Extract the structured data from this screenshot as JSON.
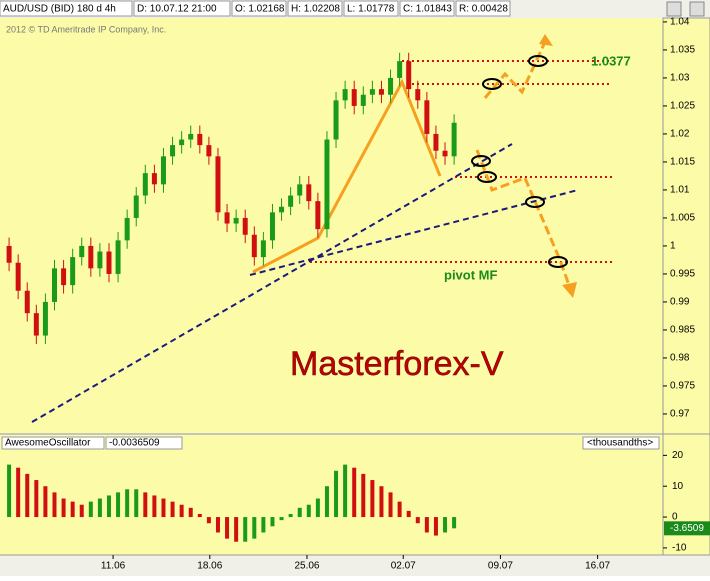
{
  "header": {
    "symbol": "AUD/USD (BID) 180 d 4h",
    "date": "D: 10.07.12 21:00",
    "open": "O: 1.02168",
    "high": "H: 1.02208",
    "low": "L: 1.01778",
    "close": "C: 1.01843",
    "range": "R: 0.00428"
  },
  "annotations": {
    "copyright": "2012 © TD Ameritrade IP Company, Inc.",
    "target": "1.0377",
    "pivot": "pivot MF",
    "brand": "Masterforex-V"
  },
  "chart_data": [
    {
      "type": "candlestick",
      "x": [
        0,
        1,
        2,
        3,
        4,
        5,
        6,
        7,
        8,
        9,
        10,
        11,
        12,
        13,
        14,
        15,
        16,
        17,
        18,
        19,
        20,
        21,
        22,
        23,
        24,
        25,
        26,
        27,
        28,
        29,
        30,
        31,
        32,
        33,
        34,
        35,
        36,
        37,
        38,
        39,
        40,
        41,
        42,
        43,
        44,
        45,
        46,
        47,
        48,
        49
      ],
      "open": [
        1.0,
        0.997,
        0.992,
        0.988,
        0.984,
        0.99,
        0.996,
        0.993,
        0.998,
        1.0,
        0.996,
        0.999,
        0.995,
        1.001,
        1.005,
        1.009,
        1.013,
        1.011,
        1.016,
        1.018,
        1.019,
        1.02,
        1.018,
        1.016,
        1.006,
        1.004,
        1.005,
        1.002,
        0.998,
        1.001,
        1.006,
        1.007,
        1.009,
        1.011,
        1.008,
        1.003,
        1.019,
        1.026,
        1.028,
        1.025,
        1.027,
        1.028,
        1.027,
        1.03,
        1.033,
        1.028,
        1.026,
        1.02,
        1.017,
        1.016
      ],
      "high": [
        1.0015,
        0.9985,
        0.9935,
        0.9895,
        0.9915,
        0.9975,
        0.9975,
        0.9995,
        1.0015,
        1.0015,
        1.0005,
        1.0005,
        1.0025,
        1.0065,
        1.0105,
        1.0145,
        1.0145,
        1.0175,
        1.0195,
        1.0205,
        1.0215,
        1.0215,
        1.0195,
        1.0175,
        1.0075,
        1.0065,
        1.0065,
        1.0035,
        1.0025,
        1.0075,
        1.0085,
        1.0105,
        1.0125,
        1.0125,
        1.0095,
        1.0205,
        1.0275,
        1.0295,
        1.0295,
        1.0285,
        1.0295,
        1.0295,
        1.0315,
        1.0345,
        1.0345,
        1.0295,
        1.0275,
        1.0215,
        1.0185,
        1.0235
      ],
      "low": [
        0.9955,
        0.9905,
        0.9865,
        0.9825,
        0.9825,
        0.9885,
        0.9915,
        0.9915,
        0.9965,
        0.9945,
        0.9945,
        0.9935,
        0.9935,
        0.9995,
        1.0035,
        1.0075,
        1.0095,
        1.0095,
        1.0145,
        1.0165,
        1.0175,
        1.0165,
        1.0145,
        1.0045,
        1.0025,
        1.0025,
        1.0005,
        0.9965,
        0.9965,
        0.9995,
        1.0045,
        1.0055,
        1.0075,
        1.0065,
        1.0015,
        1.0015,
        1.0175,
        1.0245,
        1.0235,
        1.0235,
        1.0255,
        1.0255,
        1.0255,
        1.0285,
        1.0265,
        1.0245,
        1.0185,
        1.0155,
        1.0145,
        1.0145
      ],
      "close": [
        0.997,
        0.992,
        0.988,
        0.984,
        0.99,
        0.996,
        0.993,
        0.998,
        1.0,
        0.996,
        0.999,
        0.995,
        1.001,
        1.005,
        1.009,
        1.013,
        1.011,
        1.016,
        1.018,
        1.019,
        1.02,
        1.018,
        1.016,
        1.006,
        1.004,
        1.005,
        1.002,
        0.998,
        1.001,
        1.006,
        1.007,
        1.009,
        1.011,
        1.008,
        1.003,
        1.019,
        1.026,
        1.028,
        1.025,
        1.027,
        1.028,
        1.027,
        1.03,
        1.033,
        1.028,
        1.026,
        1.02,
        1.017,
        1.016,
        1.022
      ],
      "up_color": "#1a9a1a",
      "down_color": "#d01010",
      "xlim": [
        -1,
        72
      ],
      "xticks": [
        {
          "value": 11.45,
          "label": "11.06"
        },
        {
          "value": 22.1,
          "label": "18.06"
        },
        {
          "value": 32.8,
          "label": "25.06"
        },
        {
          "value": 43.4,
          "label": "02.07"
        },
        {
          "value": 54.1,
          "label": "09.07"
        },
        {
          "value": 64.8,
          "label": "16.07"
        }
      ],
      "ylim": [
        0.9666,
        1.0407
      ],
      "yticks": [
        1.04,
        1.035,
        1.03,
        1.025,
        1.02,
        1.015,
        1.01,
        1.005,
        1,
        0.995,
        0.99,
        0.985,
        0.98,
        0.975,
        0.97
      ]
    },
    {
      "type": "oscillator",
      "name": "AwesomeOscillator",
      "current_text": "-0.0036509",
      "unit": "<thousandths>",
      "x": [
        0,
        1,
        2,
        3,
        4,
        5,
        6,
        7,
        8,
        9,
        10,
        11,
        12,
        13,
        14,
        15,
        16,
        17,
        18,
        19,
        20,
        21,
        22,
        23,
        24,
        25,
        26,
        27,
        28,
        29,
        30,
        31,
        32,
        33,
        34,
        35,
        36,
        37,
        38,
        39,
        40,
        41,
        42,
        43,
        44,
        45,
        46,
        47,
        48,
        49
      ],
      "values": [
        17,
        16,
        14,
        12,
        10,
        8,
        6,
        5,
        4,
        5,
        6,
        7,
        8,
        9,
        9,
        8,
        7,
        6,
        5,
        4,
        3,
        1,
        -2,
        -5,
        -7,
        -8,
        -8,
        -7,
        -5,
        -3,
        -1,
        1,
        3,
        4,
        6,
        10,
        15,
        17,
        16,
        14,
        12,
        10,
        8,
        5,
        2,
        -2,
        -5,
        -6,
        -5,
        -3.6509
      ],
      "current": -3.6509,
      "up_color": "#1a9a1a",
      "down_color": "#d01010",
      "xlim": [
        -1,
        72
      ],
      "ylim": [
        -12.3,
        26.6
      ],
      "yticks": [
        20,
        10,
        0,
        -10
      ]
    }
  ]
}
